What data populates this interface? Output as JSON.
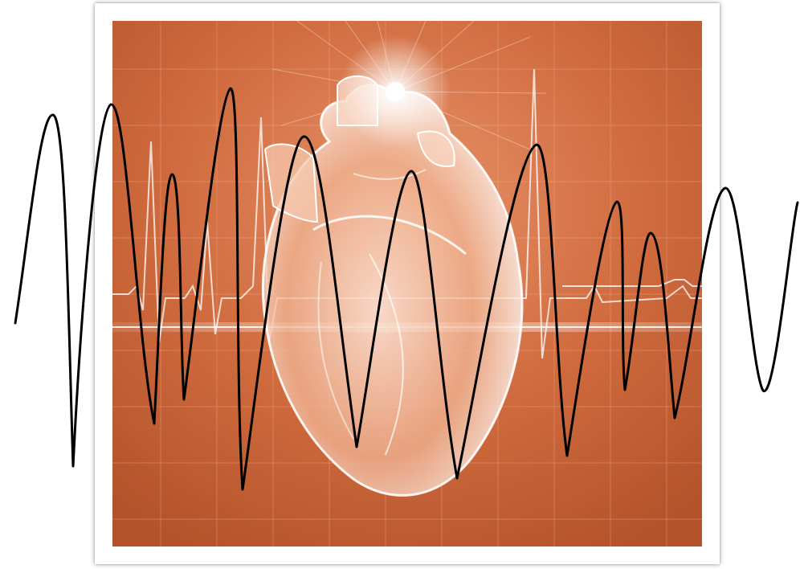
{
  "scene": {
    "subject": "heart-illustration",
    "colors": {
      "background_orange": "#cf6a3d",
      "background_orange_dark": "#b9532a",
      "highlight": "#ffffff",
      "waveform_stroke": "#000000",
      "frame": "#ffffff"
    }
  }
}
